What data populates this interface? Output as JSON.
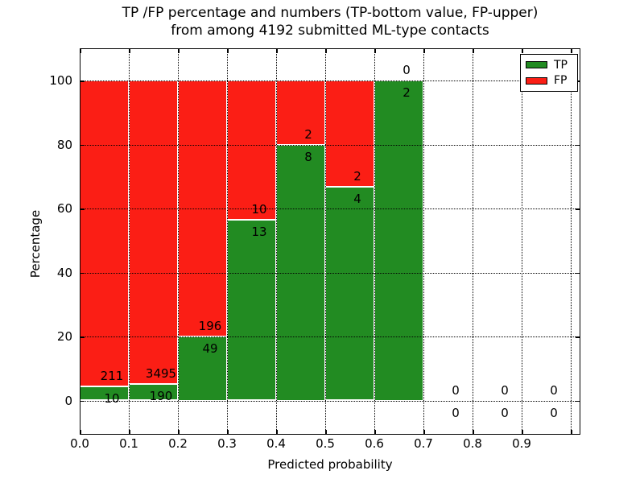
{
  "figure": {
    "background": "#ffffff"
  },
  "chart_data": {
    "type": "bar",
    "stacked": true,
    "units": "percent",
    "title_lines": [
      "TP /FP percentage and numbers (TP-bottom value, FP-upper)",
      "from among 4192 submitted ML-type contacts"
    ],
    "xlabel": "Predicted probability",
    "ylabel": "Percentage",
    "xlim": [
      0,
      1.018
    ],
    "ylim": [
      -10.7,
      110.1
    ],
    "bar_width": 0.1,
    "grid": {
      "on": true,
      "style": "dotted",
      "color": "#000000"
    },
    "colors": {
      "tp": "#228b22",
      "fp": "#fb1e15"
    },
    "legend": {
      "position": "upper-right",
      "entries": [
        {
          "key": "tp",
          "label": "TP"
        },
        {
          "key": "fp",
          "label": "FP"
        }
      ]
    },
    "xticks": [
      {
        "v": 0.0,
        "label": "0.0"
      },
      {
        "v": 0.1,
        "label": "0.1"
      },
      {
        "v": 0.2,
        "label": "0.2"
      },
      {
        "v": 0.3,
        "label": "0.3"
      },
      {
        "v": 0.4,
        "label": "0.4"
      },
      {
        "v": 0.5,
        "label": "0.5"
      },
      {
        "v": 0.6,
        "label": "0.6"
      },
      {
        "v": 0.7,
        "label": "0.7"
      },
      {
        "v": 0.8,
        "label": "0.8"
      },
      {
        "v": 0.9,
        "label": "0.9"
      },
      {
        "v": 1.0,
        "label": ""
      }
    ],
    "yticks": [
      {
        "v": 0,
        "label": "0"
      },
      {
        "v": 20,
        "label": "20"
      },
      {
        "v": 40,
        "label": "40"
      },
      {
        "v": 60,
        "label": "60"
      },
      {
        "v": 80,
        "label": "80"
      },
      {
        "v": 100,
        "label": "100"
      }
    ],
    "bins": [
      {
        "x0": 0.0,
        "x1": 0.1,
        "tp": 10,
        "fp": 211,
        "tp_percent": 4.52
      },
      {
        "x0": 0.1,
        "x1": 0.2,
        "tp": 190,
        "fp": 3495,
        "tp_percent": 5.16
      },
      {
        "x0": 0.2,
        "x1": 0.3,
        "tp": 49,
        "fp": 196,
        "tp_percent": 20.0
      },
      {
        "x0": 0.3,
        "x1": 0.4,
        "tp": 13,
        "fp": 10,
        "tp_percent": 56.52
      },
      {
        "x0": 0.4,
        "x1": 0.5,
        "tp": 8,
        "fp": 2,
        "tp_percent": 80.0
      },
      {
        "x0": 0.5,
        "x1": 0.6,
        "tp": 4,
        "fp": 2,
        "tp_percent": 66.67
      },
      {
        "x0": 0.6,
        "x1": 0.7,
        "tp": 2,
        "fp": 0,
        "tp_percent": 100.0
      },
      {
        "x0": 0.7,
        "x1": 0.8,
        "tp": 0,
        "fp": 0,
        "tp_percent": null
      },
      {
        "x0": 0.8,
        "x1": 0.9,
        "tp": 0,
        "fp": 0,
        "tp_percent": null
      },
      {
        "x0": 0.9,
        "x1": 1.0,
        "tp": 0,
        "fp": 0,
        "tp_percent": null
      }
    ]
  }
}
